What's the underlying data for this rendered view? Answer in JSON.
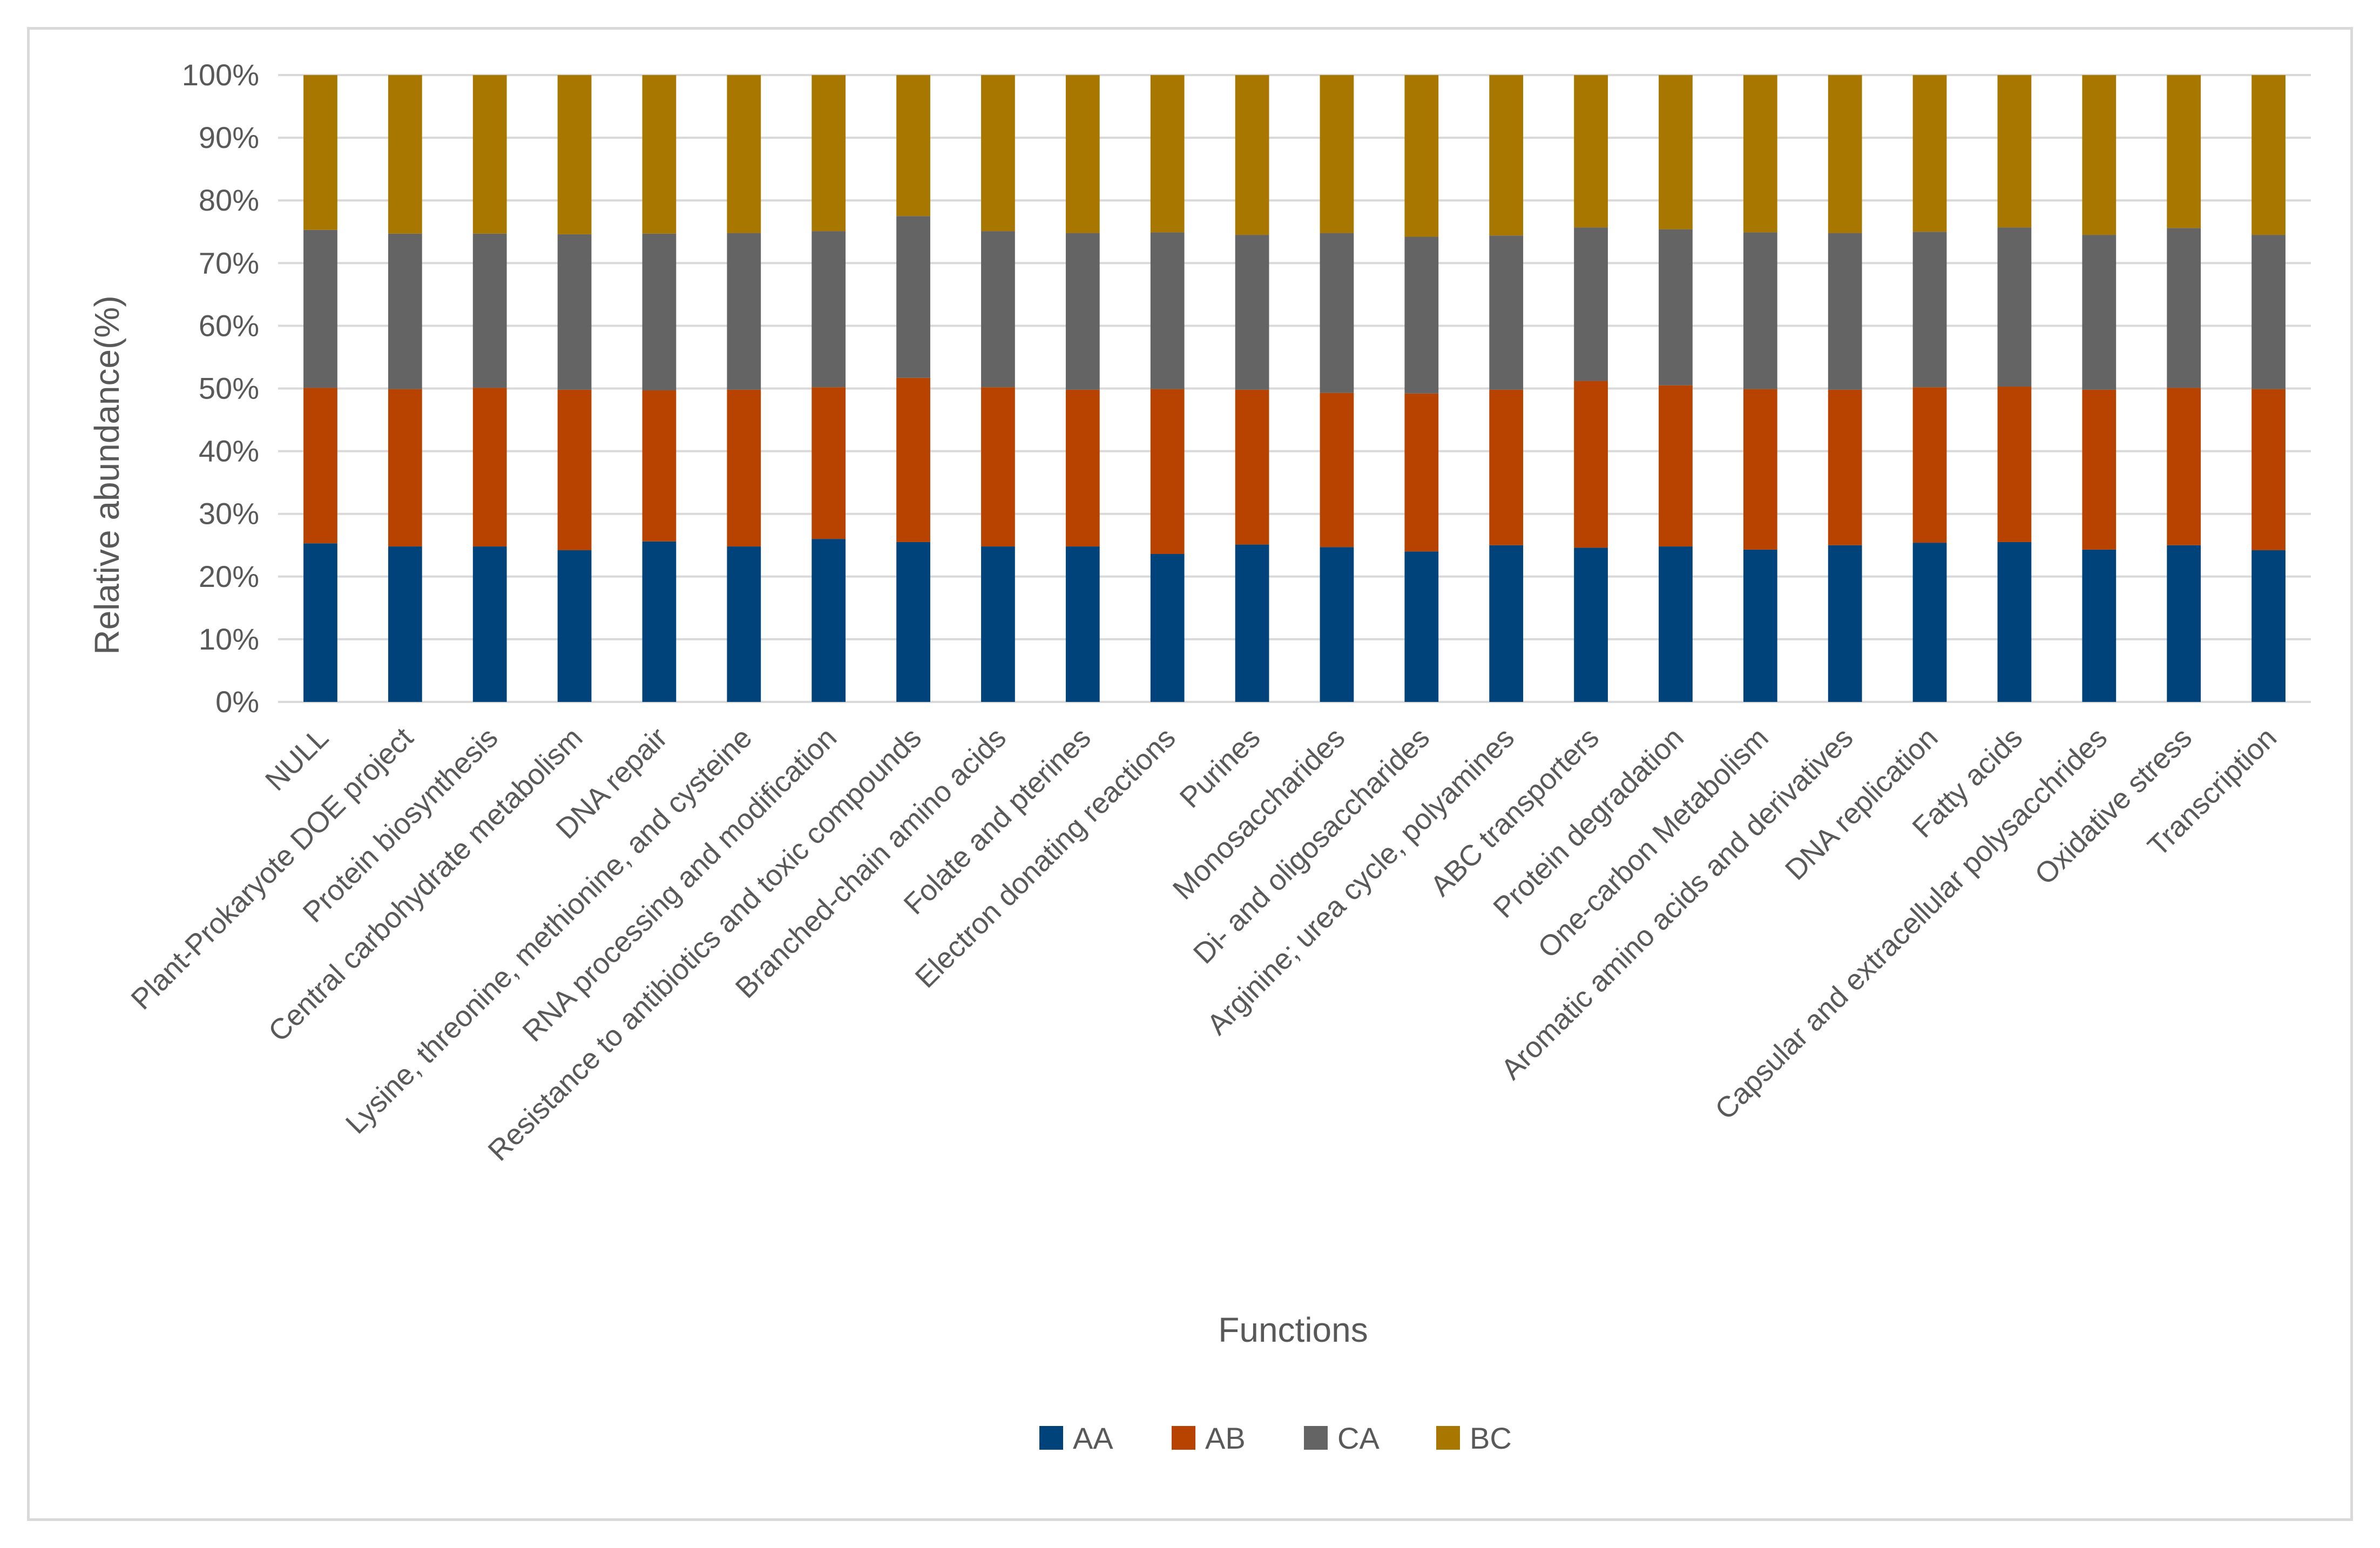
{
  "chart_data": {
    "type": "bar",
    "stacked": true,
    "title": "",
    "xlabel": "Functions",
    "ylabel": "Relative abundance(%)",
    "ylim": [
      0,
      100
    ],
    "yticks": [
      "0%",
      "10%",
      "20%",
      "30%",
      "40%",
      "50%",
      "60%",
      "70%",
      "80%",
      "90%",
      "100%"
    ],
    "grid": true,
    "legend_position": "bottom",
    "categories": [
      "NULL",
      "Plant-Prokaryote DOE project",
      "Protein biosynthesis",
      "Central carbohydrate metabolism",
      "DNA repair",
      "Lysine, threonine, methionine, and cysteine",
      "RNA processing and modification",
      "Resistance to antibiotics and toxic compounds",
      "Branched-chain amino acids",
      "Folate and pterines",
      "Electron donating reactions",
      "Purines",
      "Monosaccharides",
      "Di- and oligosaccharides",
      "Arginine; urea cycle, polyamines",
      "ABC transporters",
      "Protein degradation",
      "One-carbon Metabolism",
      "Aromatic amino acids and derivatives",
      "DNA replication",
      "Fatty acids",
      "Capsular and extracellular polysacchrides",
      "Oxidative stress",
      "Transcription"
    ],
    "series": [
      {
        "name": "AA",
        "color": "#00427a",
        "values": [
          25.3,
          24.8,
          24.8,
          24.2,
          25.6,
          24.8,
          26.0,
          25.5,
          24.8,
          24.8,
          23.6,
          25.1,
          24.7,
          24.0,
          25.0,
          24.6,
          24.8,
          24.3,
          25.0,
          25.4,
          25.5,
          24.3,
          25.0,
          24.2
        ]
      },
      {
        "name": "AB",
        "color": "#b84300",
        "values": [
          24.8,
          25.1,
          25.3,
          25.6,
          24.1,
          25.0,
          24.2,
          26.2,
          25.4,
          25.0,
          26.3,
          24.7,
          24.6,
          25.2,
          24.8,
          26.6,
          25.7,
          25.6,
          24.8,
          24.8,
          24.8,
          25.5,
          25.1,
          25.7
        ]
      },
      {
        "name": "CA",
        "color": "#646464",
        "values": [
          25.2,
          24.8,
          24.6,
          24.8,
          25.0,
          25.0,
          24.9,
          25.8,
          24.9,
          25.0,
          25.0,
          24.7,
          25.5,
          25.0,
          24.6,
          24.5,
          24.9,
          25.0,
          25.0,
          24.8,
          25.4,
          24.7,
          25.5,
          24.6
        ]
      },
      {
        "name": "BC",
        "color": "#a87700",
        "values": [
          24.7,
          25.3,
          25.3,
          25.4,
          25.3,
          25.2,
          24.9,
          22.5,
          24.9,
          25.2,
          25.1,
          25.5,
          25.2,
          25.8,
          25.6,
          24.3,
          24.6,
          25.1,
          25.2,
          25.0,
          24.3,
          25.5,
          24.4,
          25.5
        ]
      }
    ]
  }
}
